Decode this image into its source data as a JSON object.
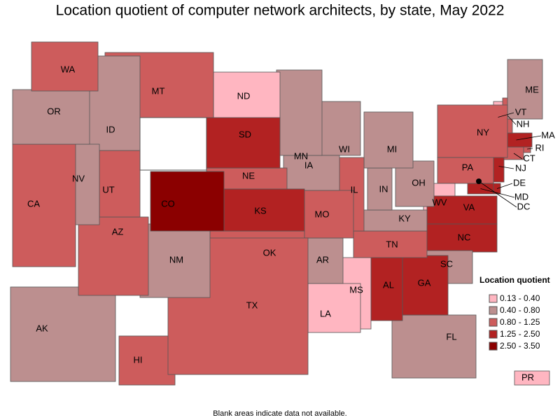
{
  "title": "Location quotient of computer network architects, by state, May 2022",
  "legend": {
    "title": "Location quotient",
    "items": [
      {
        "label": "0.13 - 0.40",
        "color": "#ffb6c1"
      },
      {
        "label": "0.40 - 0.80",
        "color": "#bc8f8f"
      },
      {
        "label": "0.80 - 1.25",
        "color": "#cd5c5c"
      },
      {
        "label": "1.25 - 2.50",
        "color": "#b22222"
      },
      {
        "label": "2.50 - 3.50",
        "color": "#8b0000"
      }
    ]
  },
  "states": [
    {
      "label": "WA",
      "bin": 2
    },
    {
      "label": "OR",
      "bin": 1
    },
    {
      "label": "CA",
      "bin": 2
    },
    {
      "label": "NV",
      "bin": 1
    },
    {
      "label": "ID",
      "bin": 1
    },
    {
      "label": "MT",
      "bin": 2
    },
    {
      "label": "UT",
      "bin": 2
    },
    {
      "label": "AZ",
      "bin": 2
    },
    {
      "label": "CO",
      "bin": 4
    },
    {
      "label": "NM",
      "bin": 1
    },
    {
      "label": "ND",
      "bin": 0
    },
    {
      "label": "SD",
      "bin": 3
    },
    {
      "label": "NE",
      "bin": 2
    },
    {
      "label": "KS",
      "bin": 3
    },
    {
      "label": "TX",
      "bin": 2
    },
    {
      "label": "OK",
      "bin": 2
    },
    {
      "label": "MN",
      "bin": 1
    },
    {
      "label": "IA",
      "bin": 1
    },
    {
      "label": "MO",
      "bin": 2
    },
    {
      "label": "AR",
      "bin": 1
    },
    {
      "label": "LA",
      "bin": 0
    },
    {
      "label": "WI",
      "bin": 1
    },
    {
      "label": "IL",
      "bin": 2
    },
    {
      "label": "MI",
      "bin": 1
    },
    {
      "label": "IN",
      "bin": 1
    },
    {
      "label": "OH",
      "bin": 1
    },
    {
      "label": "KY",
      "bin": 1
    },
    {
      "label": "TN",
      "bin": 2
    },
    {
      "label": "MS",
      "bin": 0
    },
    {
      "label": "AL",
      "bin": 3
    },
    {
      "label": "GA",
      "bin": 3
    },
    {
      "label": "FL",
      "bin": 1
    },
    {
      "label": "SC",
      "bin": 1
    },
    {
      "label": "NC",
      "bin": 3
    },
    {
      "label": "VA",
      "bin": 3
    },
    {
      "label": "WV",
      "bin": 0
    },
    {
      "label": "PA",
      "bin": 2
    },
    {
      "label": "NY",
      "bin": 2
    },
    {
      "label": "ME",
      "bin": 1
    },
    {
      "label": "VT",
      "bin": 0
    },
    {
      "label": "NH",
      "bin": 2
    },
    {
      "label": "MA",
      "bin": 3
    },
    {
      "label": "CT",
      "bin": 2
    },
    {
      "label": "RI",
      "bin": 2
    },
    {
      "label": "NJ",
      "bin": 3
    },
    {
      "label": "DE",
      "bin": 3
    },
    {
      "label": "MD",
      "bin": 3
    },
    {
      "label": "DC",
      "bin": 4
    },
    {
      "label": "AK",
      "bin": 1
    },
    {
      "label": "HI",
      "bin": 2
    },
    {
      "label": "PR",
      "bin": 0
    }
  ],
  "note": "Blank areas indicate data not available."
}
